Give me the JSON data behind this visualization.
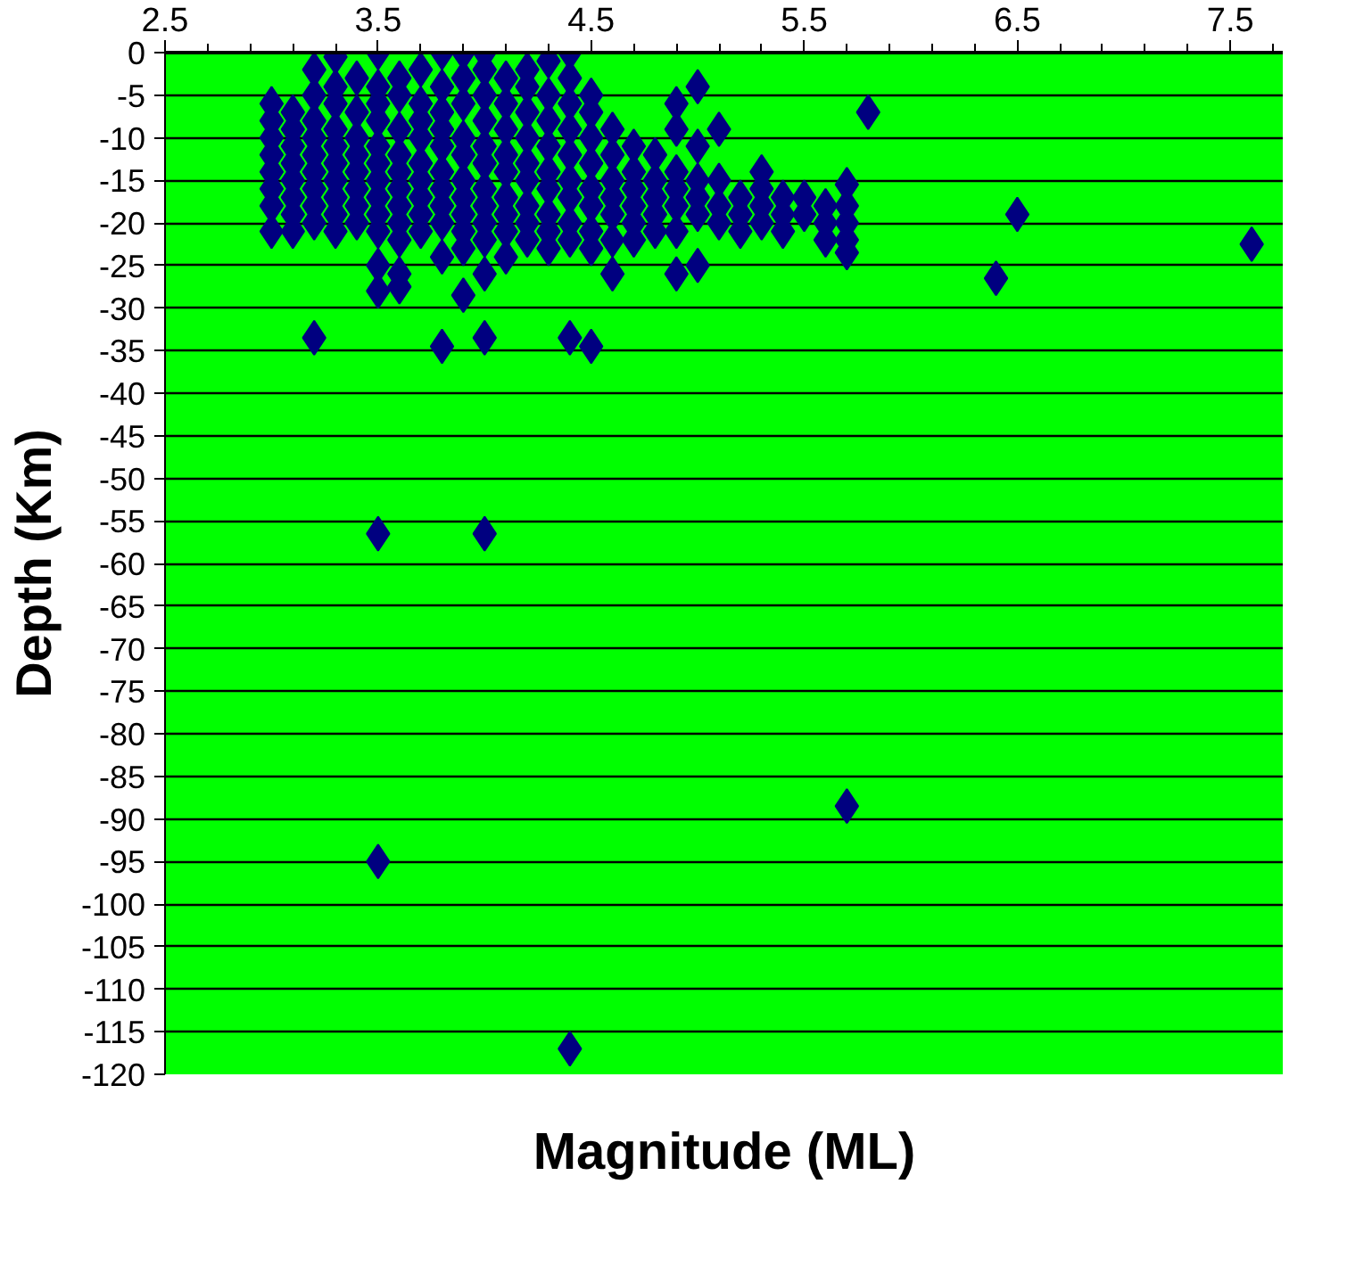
{
  "chart_data": {
    "type": "scatter",
    "xlabel": "Magnitude (ML)",
    "ylabel": "Depth (Km)",
    "xlim": [
      2.5,
      7.75
    ],
    "xticks": [
      2.5,
      3.5,
      4.5,
      5.5,
      6.5,
      7.5
    ],
    "ylim": [
      -120,
      0
    ],
    "yticks": [
      0,
      -5,
      -10,
      -15,
      -20,
      -25,
      -30,
      -35,
      -40,
      -45,
      -50,
      -55,
      -60,
      -65,
      -70,
      -75,
      -80,
      -85,
      -90,
      -95,
      -100,
      -105,
      -110,
      -115,
      -120
    ],
    "grid": "y",
    "marker": "diamond",
    "series": [
      {
        "color": "#000080",
        "x": [
          3.0,
          3.0,
          3.0,
          3.0,
          3.0,
          3.0,
          3.0,
          3.0,
          3.1,
          3.1,
          3.1,
          3.1,
          3.1,
          3.1,
          3.1,
          3.1,
          3.2,
          3.2,
          3.2,
          3.2,
          3.2,
          3.2,
          3.2,
          3.2,
          3.2,
          3.2,
          3.3,
          3.3,
          3.3,
          3.3,
          3.3,
          3.3,
          3.3,
          3.3,
          3.3,
          3.3,
          3.4,
          3.4,
          3.4,
          3.4,
          3.4,
          3.4,
          3.4,
          3.4,
          3.5,
          3.5,
          3.5,
          3.5,
          3.5,
          3.5,
          3.5,
          3.5,
          3.5,
          3.5,
          3.5,
          3.5,
          3.5,
          3.5,
          3.6,
          3.6,
          3.6,
          3.6,
          3.6,
          3.6,
          3.6,
          3.6,
          3.6,
          3.6,
          3.6,
          3.7,
          3.7,
          3.7,
          3.7,
          3.7,
          3.7,
          3.7,
          3.7,
          3.7,
          3.8,
          3.8,
          3.8,
          3.8,
          3.8,
          3.8,
          3.8,
          3.8,
          3.8,
          3.8,
          3.8,
          3.9,
          3.9,
          3.9,
          3.9,
          3.9,
          3.9,
          3.9,
          3.9,
          3.9,
          3.9,
          3.9,
          4.0,
          4.0,
          4.0,
          4.0,
          4.0,
          4.0,
          4.0,
          4.0,
          4.0,
          4.0,
          4.0,
          4.0,
          4.0,
          4.1,
          4.1,
          4.1,
          4.1,
          4.1,
          4.1,
          4.1,
          4.1,
          4.1,
          4.2,
          4.2,
          4.2,
          4.2,
          4.2,
          4.2,
          4.2,
          4.2,
          4.2,
          4.3,
          4.3,
          4.3,
          4.3,
          4.3,
          4.3,
          4.3,
          4.3,
          4.3,
          4.4,
          4.4,
          4.4,
          4.4,
          4.4,
          4.4,
          4.4,
          4.4,
          4.4,
          4.4,
          4.4,
          4.5,
          4.5,
          4.5,
          4.5,
          4.5,
          4.5,
          4.5,
          4.5,
          4.5,
          4.6,
          4.6,
          4.6,
          4.6,
          4.6,
          4.6,
          4.6,
          4.7,
          4.7,
          4.7,
          4.7,
          4.7,
          4.7,
          4.8,
          4.8,
          4.8,
          4.8,
          4.8,
          4.9,
          4.9,
          4.9,
          4.9,
          4.9,
          4.9,
          4.9,
          5.0,
          5.0,
          5.0,
          5.0,
          5.0,
          5.0,
          5.1,
          5.1,
          5.1,
          5.1,
          5.2,
          5.2,
          5.2,
          5.3,
          5.3,
          5.3,
          5.3,
          5.4,
          5.4,
          5.4,
          5.5,
          5.5,
          5.6,
          5.6,
          5.6,
          5.7,
          5.7,
          5.7,
          5.7,
          5.7,
          5.7,
          5.8,
          6.4,
          6.5,
          7.6
        ],
        "values": [
          -6,
          -8,
          -10,
          -12,
          -14,
          -16,
          -18,
          -21,
          -7,
          -9,
          -11,
          -13,
          -15,
          -17,
          -19,
          -21,
          -2,
          -5,
          -8,
          -10,
          -12,
          -14,
          -16,
          -18,
          -20,
          -33.5,
          -0.5,
          -4,
          -6,
          -9,
          -11,
          -13,
          -15,
          -17,
          -19,
          -21,
          -3,
          -7,
          -10,
          -12,
          -14,
          -16,
          -18,
          -20,
          0,
          -4,
          -6,
          -8,
          -11,
          -13,
          -15,
          -17,
          -19,
          -21,
          -25,
          -28,
          -56.5,
          -95,
          -3,
          -5,
          -9,
          -12,
          -14,
          -16,
          -18,
          -20,
          -22,
          -26,
          -27.5,
          -2,
          -6,
          -8,
          -10,
          -13,
          -15,
          -17,
          -19,
          -21,
          0,
          -4,
          -7,
          -9,
          -11,
          -14,
          -16,
          -18,
          -20,
          -24,
          -34.5,
          0,
          -3,
          -6,
          -10,
          -12,
          -15,
          -17,
          -19,
          -21,
          -23,
          -28.5,
          0,
          -2,
          -5,
          -8,
          -11,
          -13,
          -16,
          -18,
          -20,
          -22,
          -26,
          -33.5,
          -56.5,
          -3,
          -6,
          -9,
          -12,
          -14,
          -17,
          -19,
          -21,
          -24,
          -2,
          -4,
          -7,
          -10,
          -13,
          -15,
          -18,
          -20,
          -22,
          -1,
          -5,
          -8,
          -11,
          -14,
          -16,
          -19,
          -21,
          -23,
          0,
          -3,
          -6,
          -9,
          -12,
          -15,
          -17,
          -20,
          -22,
          -33.5,
          -117,
          -5,
          -7,
          -10,
          -13,
          -16,
          -18,
          -21,
          -23,
          -34.5,
          -9,
          -12,
          -15,
          -17,
          -19,
          -22,
          -26,
          -11,
          -14,
          -16,
          -18,
          -20,
          -22,
          -12,
          -15,
          -17,
          -19,
          -21,
          -6,
          -9,
          -14,
          -16,
          -18,
          -21,
          -26,
          -4,
          -11,
          -15,
          -17,
          -19,
          -25,
          -9,
          -15,
          -18,
          -20,
          -17,
          -19,
          -21,
          -14,
          -16,
          -18,
          -20,
          -17,
          -19,
          -21,
          -17,
          -19,
          -18,
          -20,
          -22,
          -15.5,
          -18,
          -20,
          -22,
          -23.5,
          -88.5,
          -7,
          -26.5,
          -19,
          -22.5
        ]
      }
    ]
  }
}
